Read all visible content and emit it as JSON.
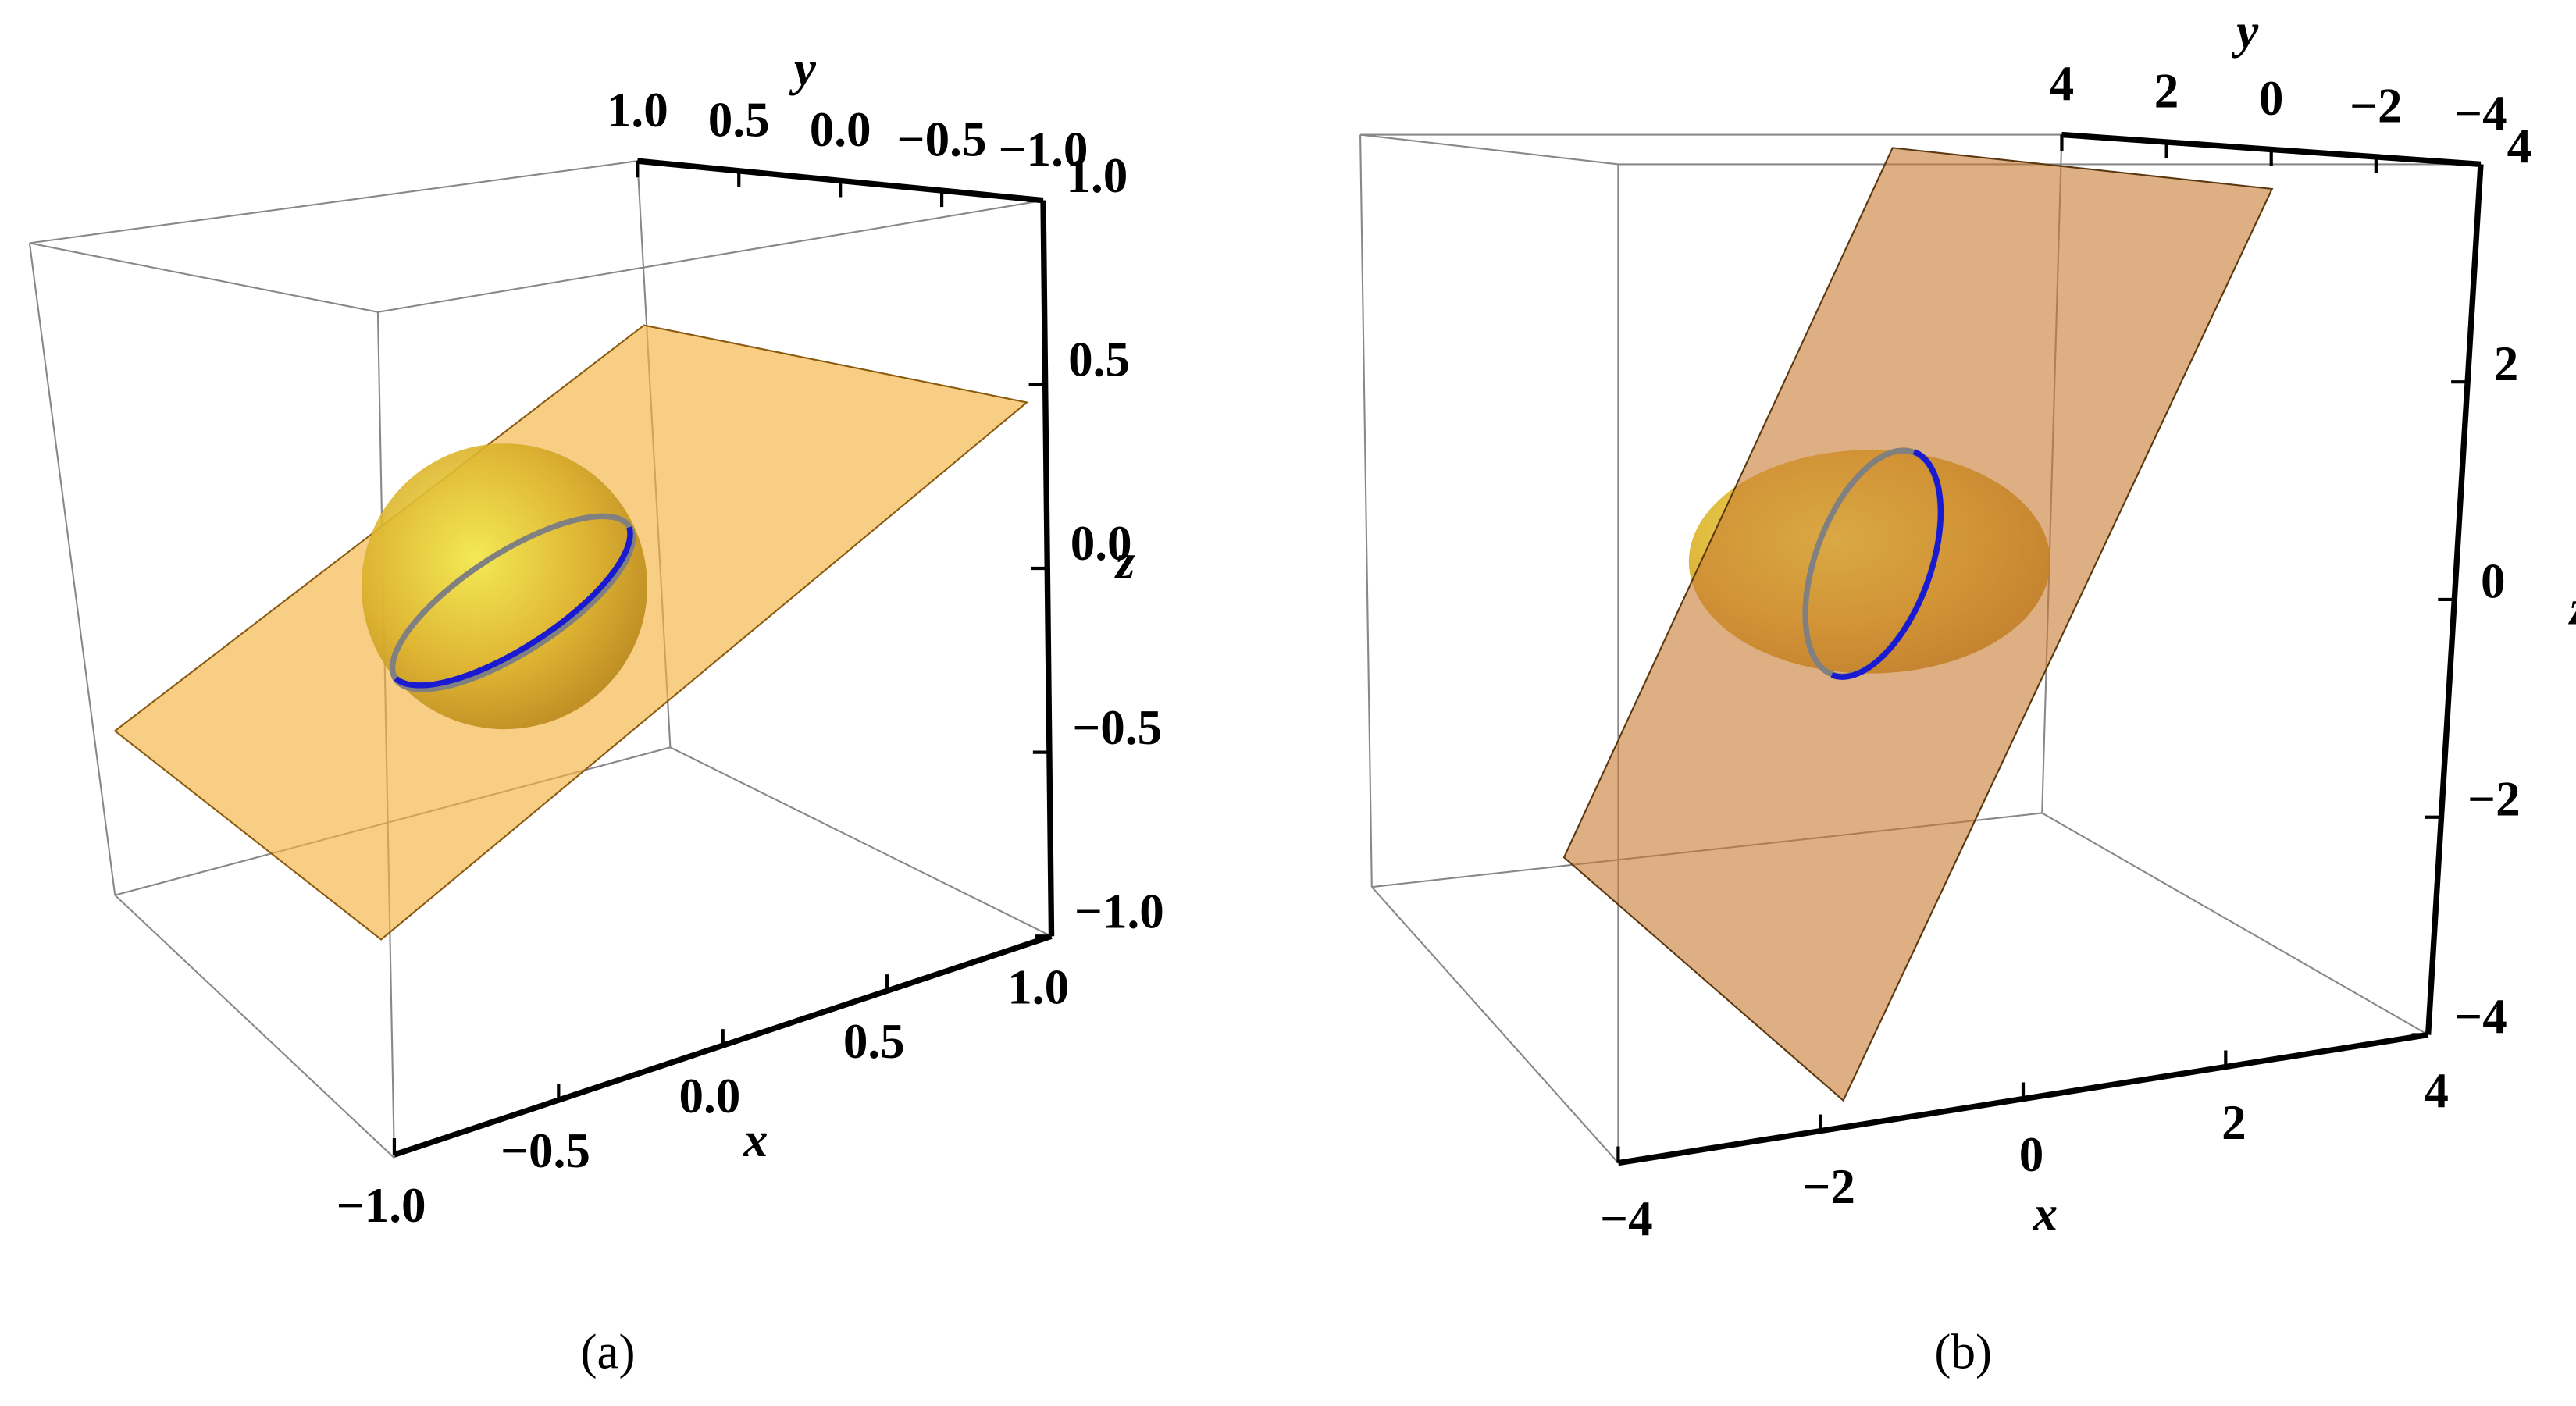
{
  "chart_data": [
    {
      "type": "plot3d",
      "caption": "(a)",
      "xlabel": "x",
      "ylabel": "y",
      "zlabel": "z",
      "xlim": [
        -1,
        1
      ],
      "ylim": [
        -1,
        1
      ],
      "zlim": [
        -1,
        1
      ],
      "xticks": [
        {
          "value": -1,
          "label": "−1.0"
        },
        {
          "value": -0.5,
          "label": "−0.5"
        },
        {
          "value": 0,
          "label": "0.0"
        },
        {
          "value": 0.5,
          "label": "0.5"
        },
        {
          "value": 1,
          "label": "1.0"
        }
      ],
      "yticks": [
        {
          "value": -1,
          "label": "−1.0"
        },
        {
          "value": -0.5,
          "label": "−0.5"
        },
        {
          "value": 0,
          "label": "0.0"
        },
        {
          "value": 0.5,
          "label": "0.5"
        },
        {
          "value": 1,
          "label": "1.0"
        }
      ],
      "zticks": [
        {
          "value": -1,
          "label": "−1.0"
        },
        {
          "value": -0.5,
          "label": "−0.5"
        },
        {
          "value": 0,
          "label": "0.0"
        },
        {
          "value": 0.5,
          "label": "0.5"
        },
        {
          "value": 1,
          "label": "1.0"
        }
      ]
    },
    {
      "type": "plot3d",
      "caption": "(b)",
      "xlabel": "x",
      "ylabel": "y",
      "zlabel": "z",
      "xlim": [
        -4,
        4
      ],
      "ylim": [
        -4,
        4
      ],
      "zlim": [
        -4,
        4
      ],
      "xticks": [
        {
          "value": -4,
          "label": "−4"
        },
        {
          "value": -2,
          "label": "−2"
        },
        0,
        2,
        4
      ],
      "yticks": [
        {
          "value": -4,
          "label": "−4"
        },
        {
          "value": -2,
          "label": "−2"
        },
        0,
        2,
        4
      ],
      "zticks": [
        {
          "value": -4,
          "label": "−4"
        },
        {
          "value": -2,
          "label": "−2"
        },
        0,
        2,
        4
      ]
    }
  ]
}
